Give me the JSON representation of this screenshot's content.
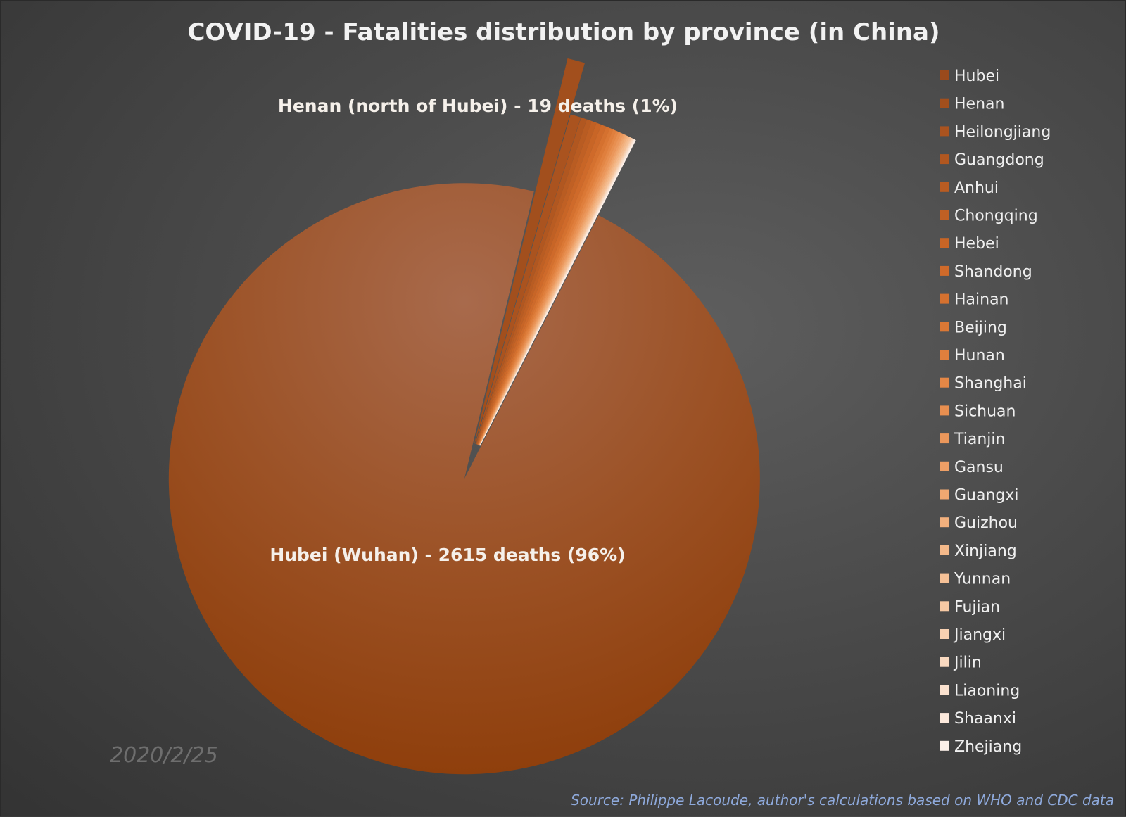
{
  "chart_data": {
    "type": "pie",
    "title": "COVID-19 - Fatalities distribution by province (in China)",
    "categories": [
      "Hubei",
      "Henan",
      "Heilongjiang",
      "Guangdong",
      "Anhui",
      "Chongqing",
      "Hebei",
      "Shandong",
      "Hainan",
      "Beijing",
      "Hunan",
      "Shanghai",
      "Sichuan",
      "Tianjin",
      "Gansu",
      "Guangxi",
      "Guizhou",
      "Xinjiang",
      "Yunnan",
      "Fujian",
      "Jiangxi",
      "Jilin",
      "Liaoning",
      "Shaanxi",
      "Zhejiang"
    ],
    "values": [
      2615,
      19,
      13,
      7,
      6,
      6,
      6,
      6,
      5,
      4,
      4,
      3,
      3,
      3,
      2,
      2,
      2,
      2,
      2,
      1,
      1,
      1,
      1,
      1,
      1
    ],
    "colors": [
      "#9a4a1c",
      "#a24f1d",
      "#aa531f",
      "#b15720",
      "#b95c22",
      "#c06024",
      "#c86526",
      "#cf6a2a",
      "#d5712f",
      "#db7835",
      "#e07f3d",
      "#e48746",
      "#e88f50",
      "#eb975b",
      "#ee9f66",
      "#f0a871",
      "#f2b07d",
      "#f4b98a",
      "#f5c197",
      "#f7c9a4",
      "#f8d1b2",
      "#f9d9c0",
      "#fae1ce",
      "#fce9dc",
      "#fdf1ea"
    ],
    "annotations": [
      {
        "category": "Hubei",
        "text": "Hubei (Wuhan) - 2615 deaths (96%)"
      },
      {
        "category": "Henan",
        "text": "Henan (north of Hubei) - 19 deaths (1%)"
      }
    ],
    "legend": "right",
    "legend_highlight": {
      "category": "Hubei",
      "color": "#e2641f"
    }
  },
  "date_stamp": "2020/2/25",
  "source": "Source: Philippe Lacoude, author's calculations based on WHO and CDC data"
}
